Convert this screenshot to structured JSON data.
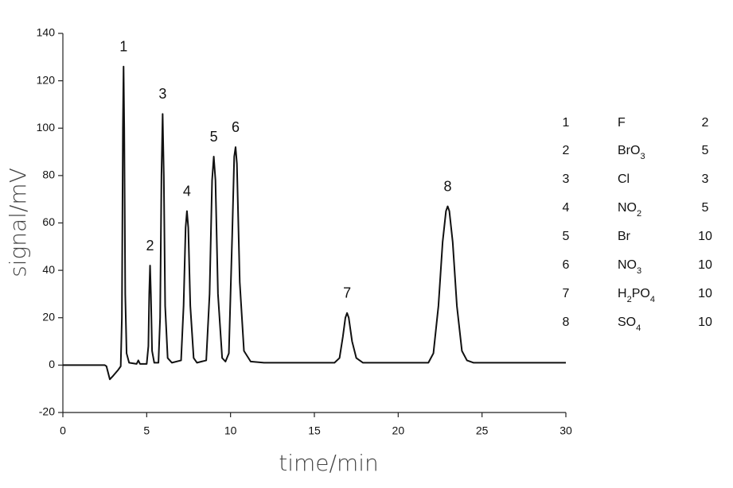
{
  "chart_data": {
    "type": "line",
    "xlabel": "time/min",
    "ylabel": "signal/mV",
    "xlim": [
      0,
      30
    ],
    "ylim": [
      -20,
      140
    ],
    "xticks": [
      0,
      5,
      10,
      15,
      20,
      25,
      30
    ],
    "yticks": [
      -20,
      0,
      20,
      40,
      60,
      80,
      100,
      120,
      140
    ],
    "series": [
      {
        "color": "#111111",
        "x": [
          0,
          2.5,
          2.6,
          2.8,
          3.0,
          3.3,
          3.45,
          3.52,
          3.58,
          3.62,
          3.66,
          3.72,
          3.8,
          3.95,
          4.4,
          4.5,
          4.6,
          5.0,
          5.1,
          5.15,
          5.2,
          5.25,
          5.32,
          5.45,
          5.7,
          5.8,
          5.88,
          5.95,
          6.02,
          6.1,
          6.25,
          6.5,
          7.05,
          7.2,
          7.32,
          7.4,
          7.48,
          7.6,
          7.8,
          8.0,
          8.55,
          8.75,
          8.9,
          9.0,
          9.1,
          9.25,
          9.5,
          9.7,
          9.9,
          10.1,
          10.22,
          10.3,
          10.38,
          10.55,
          10.8,
          11.2,
          12,
          16.2,
          16.5,
          16.7,
          16.85,
          16.95,
          17.05,
          17.25,
          17.5,
          17.9,
          21.8,
          22.1,
          22.4,
          22.65,
          22.85,
          22.95,
          23.05,
          23.25,
          23.5,
          23.8,
          24.1,
          24.5,
          30
        ],
        "values": [
          0,
          0,
          -0.5,
          -6,
          -4.5,
          -2,
          -0.5,
          20,
          100,
          126,
          100,
          30,
          5,
          1,
          0.5,
          2,
          0.5,
          0.5,
          8,
          30,
          42,
          30,
          6,
          1,
          1,
          20,
          80,
          106,
          80,
          25,
          3,
          1,
          2,
          25,
          58,
          65,
          58,
          25,
          3,
          1,
          2,
          30,
          78,
          88,
          78,
          30,
          3,
          1.5,
          5,
          55,
          88,
          92,
          85,
          35,
          6,
          1.5,
          1,
          1,
          3,
          12,
          20,
          22,
          20,
          10,
          3,
          1,
          1,
          5,
          25,
          52,
          65,
          67,
          65,
          52,
          25,
          6,
          2,
          1,
          1
        ]
      }
    ],
    "peak_labels": [
      {
        "text": "1",
        "x": 3.62,
        "y": 126
      },
      {
        "text": "2",
        "x": 5.2,
        "y": 42
      },
      {
        "text": "3",
        "x": 5.95,
        "y": 106
      },
      {
        "text": "4",
        "x": 7.4,
        "y": 65
      },
      {
        "text": "5",
        "x": 9.0,
        "y": 88
      },
      {
        "text": "6",
        "x": 10.3,
        "y": 92
      },
      {
        "text": "7",
        "x": 16.95,
        "y": 22
      },
      {
        "text": "8",
        "x": 22.95,
        "y": 67
      }
    ],
    "legend": {
      "rows": [
        {
          "number": "1",
          "name": [
            "F"
          ],
          "concentration": "2"
        },
        {
          "number": "2",
          "name": [
            "BrO",
            "3"
          ],
          "concentration": "5"
        },
        {
          "number": "3",
          "name": [
            "Cl"
          ],
          "concentration": "3"
        },
        {
          "number": "4",
          "name": [
            "NO",
            "2"
          ],
          "concentration": "5"
        },
        {
          "number": "5",
          "name": [
            "Br"
          ],
          "concentration": "10"
        },
        {
          "number": "6",
          "name": [
            "NO",
            "3"
          ],
          "concentration": "10"
        },
        {
          "number": "7",
          "name": [
            "H",
            "2",
            "PO",
            "4"
          ],
          "concentration": "10"
        },
        {
          "number": "8",
          "name": [
            "SO",
            "4"
          ],
          "concentration": "10"
        }
      ]
    }
  }
}
